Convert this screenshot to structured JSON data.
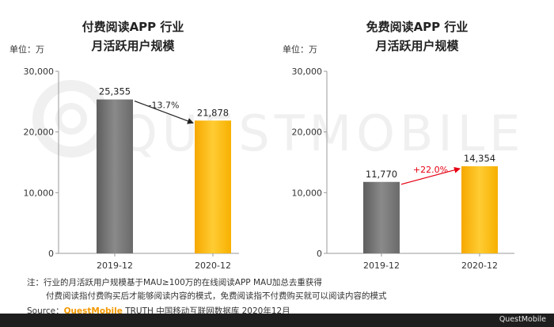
{
  "chart_data": [
    {
      "type": "bar",
      "title_lines": [
        "付费阅读APP 行业",
        "月活跃用户规模"
      ],
      "unit_label": "单位：万",
      "categories": [
        "2019-12",
        "2020-12"
      ],
      "values": [
        25355,
        21878
      ],
      "value_labels": [
        "25,355",
        "21,878"
      ],
      "growth_label": "-13.7%",
      "growth_color": "#222222",
      "bar_colors": [
        "#7f7f7f",
        "#ffc000"
      ],
      "ylim": [
        0,
        30000
      ],
      "yticks": [
        0,
        10000,
        20000,
        30000
      ],
      "ytick_labels": [
        "0",
        "10,000",
        "20,000",
        "30,000"
      ],
      "grid": false
    },
    {
      "type": "bar",
      "title_lines": [
        "免费阅读APP 行业",
        "月活跃用户规模"
      ],
      "unit_label": "单位：万",
      "categories": [
        "2019-12",
        "2020-12"
      ],
      "values": [
        11770,
        14354
      ],
      "value_labels": [
        "11,770",
        "14,354"
      ],
      "growth_label": "+22.0%",
      "growth_color": "#e60012",
      "bar_colors": [
        "#7f7f7f",
        "#ffc000"
      ],
      "ylim": [
        0,
        30000
      ],
      "yticks": [
        0,
        10000,
        20000,
        30000
      ],
      "ytick_labels": [
        "0",
        "10,000",
        "20,000",
        "30,000"
      ],
      "grid": false
    }
  ],
  "notes": {
    "line1": "注：行业的月活跃用户规模基于MAU≥100万的在线阅读APP MAU加总去重获得",
    "line2": "付费阅读指付费购买后才能够阅读内容的模式，免费阅读指不付费购买就可以阅读内容的模式"
  },
  "source": {
    "prefix": "Source：",
    "brand": "QuestMobile",
    "suffix": " TRUTH 中国移动互联网数据库 2020年12月"
  },
  "watermark_text": "QUESTMOBILE",
  "corner_brand": "QuestMobile"
}
